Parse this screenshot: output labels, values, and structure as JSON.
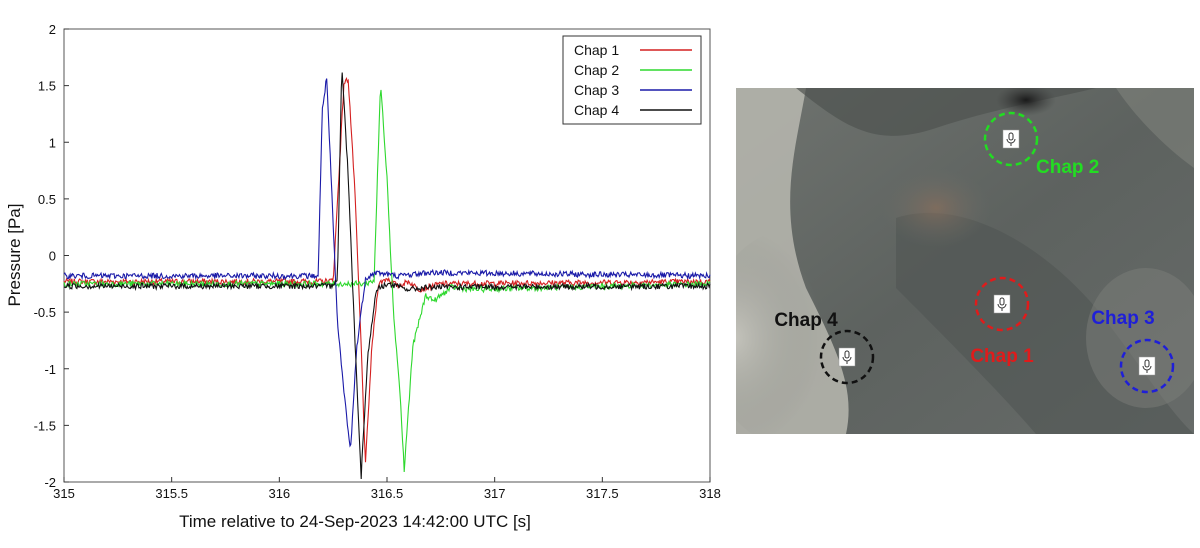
{
  "chart_data": {
    "type": "line",
    "title": "",
    "xlabel": "Time relative to 24-Sep-2023 14:42:00 UTC [s]",
    "ylabel": "Pressure [Pa]",
    "xlim": [
      315,
      318
    ],
    "ylim": [
      -2,
      2
    ],
    "xticks": [
      "315",
      "315.5",
      "316",
      "316.5",
      "317",
      "317.5",
      "318"
    ],
    "yticks": [
      "2",
      "1.5",
      "1",
      "0.5",
      "0",
      "-0.5",
      "-1",
      "-1.5",
      "-2"
    ],
    "grid": false,
    "legend_position": "top-right",
    "series": [
      {
        "name": "Chap 1",
        "color": "#d42020",
        "points": [
          [
            315.0,
            -0.23
          ],
          [
            316.2,
            -0.23
          ],
          [
            316.25,
            -0.22
          ],
          [
            316.3,
            1.52
          ],
          [
            316.32,
            1.56
          ],
          [
            316.35,
            0.6
          ],
          [
            316.38,
            -0.8
          ],
          [
            316.4,
            -1.85
          ],
          [
            316.43,
            -0.8
          ],
          [
            316.46,
            -0.25
          ],
          [
            316.5,
            -0.2
          ],
          [
            316.55,
            -0.27
          ],
          [
            316.6,
            -0.23
          ],
          [
            316.65,
            -0.3
          ],
          [
            316.75,
            -0.25
          ],
          [
            318.0,
            -0.23
          ]
        ]
      },
      {
        "name": "Chap 2",
        "color": "#2ed82e",
        "points": [
          [
            315.0,
            -0.25
          ],
          [
            316.4,
            -0.25
          ],
          [
            316.44,
            -0.22
          ],
          [
            316.47,
            1.52
          ],
          [
            316.5,
            0.7
          ],
          [
            316.53,
            -0.5
          ],
          [
            316.56,
            -1.2
          ],
          [
            316.58,
            -1.9
          ],
          [
            316.62,
            -0.8
          ],
          [
            316.68,
            -0.35
          ],
          [
            316.72,
            -0.4
          ],
          [
            316.8,
            -0.28
          ],
          [
            316.9,
            -0.3
          ],
          [
            318.0,
            -0.25
          ]
        ]
      },
      {
        "name": "Chap 3",
        "color": "#1a1aa8",
        "points": [
          [
            315.0,
            -0.18
          ],
          [
            316.18,
            -0.18
          ],
          [
            316.2,
            1.3
          ],
          [
            316.22,
            1.57
          ],
          [
            316.24,
            0.7
          ],
          [
            316.27,
            -0.6
          ],
          [
            316.3,
            -1.2
          ],
          [
            316.33,
            -1.73
          ],
          [
            316.36,
            -0.8
          ],
          [
            316.4,
            -0.2
          ],
          [
            316.45,
            -0.15
          ],
          [
            316.55,
            -0.18
          ],
          [
            316.7,
            -0.15
          ],
          [
            318.0,
            -0.18
          ]
        ]
      },
      {
        "name": "Chap 4",
        "color": "#111111",
        "points": [
          [
            315.0,
            -0.27
          ],
          [
            316.24,
            -0.27
          ],
          [
            316.27,
            -0.2
          ],
          [
            316.29,
            1.68
          ],
          [
            316.32,
            0.7
          ],
          [
            316.35,
            -0.7
          ],
          [
            316.38,
            -1.95
          ],
          [
            316.41,
            -0.9
          ],
          [
            316.45,
            -0.3
          ],
          [
            316.5,
            -0.25
          ],
          [
            316.6,
            -0.3
          ],
          [
            316.7,
            -0.28
          ],
          [
            318.0,
            -0.27
          ]
        ]
      }
    ]
  },
  "map": {
    "sites": [
      {
        "label": "Chap 1",
        "color": "#e01b1b",
        "mic_icon": "microphone-icon"
      },
      {
        "label": "Chap 2",
        "color": "#22dd22",
        "mic_icon": "microphone-icon"
      },
      {
        "label": "Chap 3",
        "color": "#1f1fd8",
        "mic_icon": "microphone-icon"
      },
      {
        "label": "Chap 4",
        "color": "#111111",
        "mic_icon": "microphone-icon"
      }
    ]
  }
}
